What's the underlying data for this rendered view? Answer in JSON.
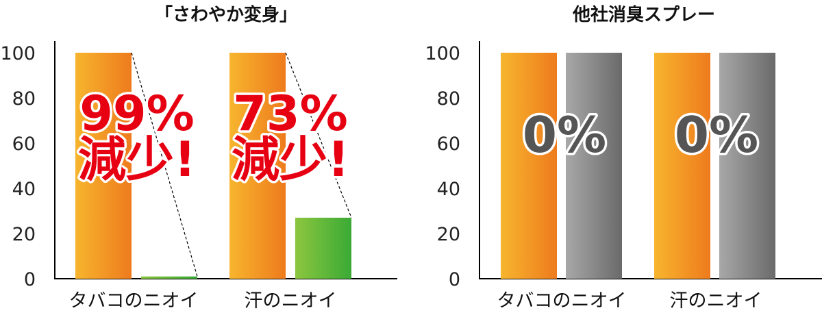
{
  "colors": {
    "orange_start": "#f7b52e",
    "orange_end": "#ee7b1d",
    "green_start": "#8cc63f",
    "green_end": "#3aaa35",
    "gray_start": "#a8a8a8",
    "gray_end": "#6a6a6a",
    "red": "#e60012"
  },
  "chart_data": [
    {
      "type": "bar",
      "title": "「さわやか変身」",
      "categories": [
        "タバコのニオイ",
        "汗のニオイ"
      ],
      "series": [
        {
          "values": [
            100,
            100
          ]
        },
        {
          "values": [
            1,
            27
          ]
        }
      ],
      "ylim": [
        0,
        100
      ],
      "yticks": [
        "0",
        "20",
        "40",
        "60",
        "80",
        "100"
      ],
      "annotations": [
        {
          "percent": "99%",
          "text": "減少!"
        },
        {
          "percent": "73%",
          "text": "減少!"
        }
      ]
    },
    {
      "type": "bar",
      "title": "他社消臭スプレー",
      "categories": [
        "タバコのニオイ",
        "汗のニオイ"
      ],
      "series": [
        {
          "values": [
            100,
            100
          ]
        },
        {
          "values": [
            100,
            100
          ]
        }
      ],
      "ylim": [
        0,
        100
      ],
      "yticks": [
        "0",
        "20",
        "40",
        "60",
        "80",
        "100"
      ],
      "annotations": [
        {
          "percent": "0%"
        },
        {
          "percent": "0%"
        }
      ]
    }
  ]
}
